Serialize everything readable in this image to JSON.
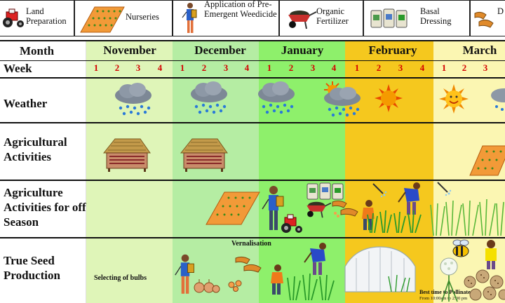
{
  "legend": [
    {
      "name": "legend-land-preparation",
      "icon": "tractor-icon",
      "label": "Land Preparation"
    },
    {
      "name": "legend-nurseries",
      "icon": "seedbed-icon",
      "label": "Nurseries"
    },
    {
      "name": "legend-pre-emergent-weedicide",
      "icon": "sprayer-person-icon",
      "label": "Application of Pre-Emergent Weedicide"
    },
    {
      "name": "legend-organic-fertilizer",
      "icon": "wheelbarrow-icon",
      "label": "Organic Fertilizer"
    },
    {
      "name": "legend-basal-dressing",
      "icon": "fertilizer-bags-icon",
      "label": "Basal Dressing"
    },
    {
      "name": "legend-next",
      "icon": "hands-icon",
      "label": "D"
    }
  ],
  "header": {
    "month_label": "Month",
    "week_label": "Week"
  },
  "months": [
    "November",
    "December",
    "January",
    "February",
    "March"
  ],
  "weeks": [
    "1",
    "2",
    "3",
    "4"
  ],
  "rows": [
    "Weather",
    "Agricultural Activities",
    "Agriculture Activities for off Season",
    "True Seed Production"
  ],
  "annotations": {
    "vernalisation": "Vernalisation",
    "selecting_bulbs": "Selecting of bulbs",
    "pollinate_title": "Best time to Pollinate",
    "pollinate_time": "From 10:00am to 2:00 pm"
  },
  "colors": {
    "november": "#dff5b8",
    "december": "#b5eda3",
    "january": "#8ef06b",
    "february": "#f5c81e",
    "march": "#fbf6b2",
    "week_numbers": "#d40000"
  }
}
